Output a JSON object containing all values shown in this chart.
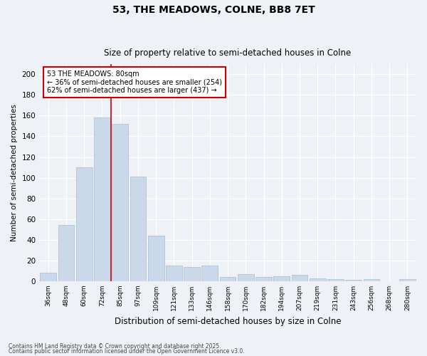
{
  "title1": "53, THE MEADOWS, COLNE, BB8 7ET",
  "title2": "Size of property relative to semi-detached houses in Colne",
  "xlabel": "Distribution of semi-detached houses by size in Colne",
  "ylabel": "Number of semi-detached properties",
  "categories": [
    "36sqm",
    "48sqm",
    "60sqm",
    "72sqm",
    "85sqm",
    "97sqm",
    "109sqm",
    "121sqm",
    "133sqm",
    "146sqm",
    "158sqm",
    "170sqm",
    "182sqm",
    "194sqm",
    "207sqm",
    "219sqm",
    "231sqm",
    "243sqm",
    "256sqm",
    "268sqm",
    "280sqm"
  ],
  "values": [
    8,
    54,
    110,
    158,
    152,
    101,
    44,
    15,
    14,
    15,
    4,
    7,
    4,
    5,
    6,
    3,
    2,
    1,
    2,
    0,
    2
  ],
  "bar_color": "#c9d9ea",
  "bar_edge_color": "#aabcce",
  "annotation_line1": "53 THE MEADOWS: 80sqm",
  "annotation_line2": "← 36% of semi-detached houses are smaller (254)",
  "annotation_line3": "62% of semi-detached houses are larger (437) →",
  "annotation_box_color": "#ffffff",
  "annotation_box_edge": "#cc0000",
  "redline_color": "#cc0000",
  "ylim": [
    0,
    210
  ],
  "yticks": [
    0,
    20,
    40,
    60,
    80,
    100,
    120,
    140,
    160,
    180,
    200
  ],
  "footer1": "Contains HM Land Registry data © Crown copyright and database right 2025.",
  "footer2": "Contains public sector information licensed under the Open Government Licence v3.0.",
  "bg_color": "#eef2f6",
  "grid_color": "#ffffff"
}
